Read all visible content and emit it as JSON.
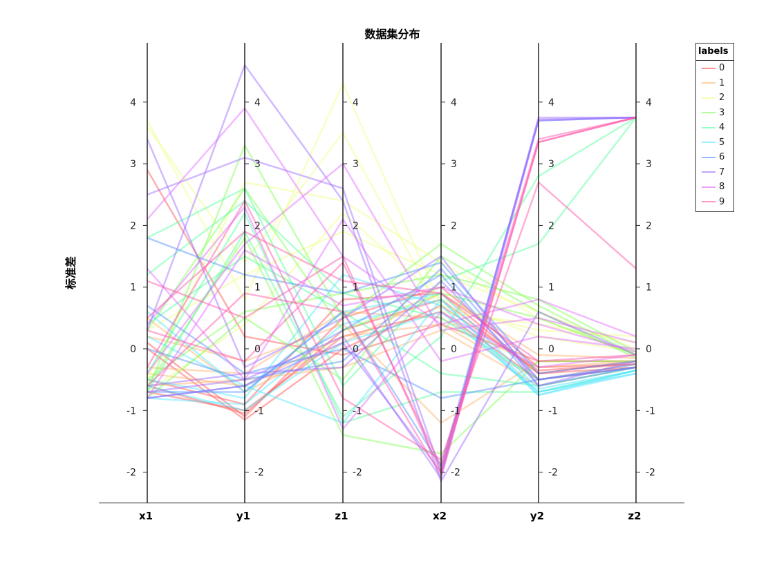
{
  "chart_data": {
    "type": "parallel-coordinates",
    "title": "数据集分布",
    "ylabel": "标准差",
    "axes": [
      "x1",
      "y1",
      "z1",
      "x2",
      "y2",
      "z2"
    ],
    "ylim": [
      -2.5,
      4.9
    ],
    "yticks": [
      -2,
      -1,
      0,
      1,
      2,
      3,
      4
    ],
    "grid": false,
    "legend": {
      "title": "labels",
      "placement": "top-right"
    },
    "series": [
      {
        "name": "0",
        "color": "#ff4d4d",
        "values": [
          [
            -0.6,
            -1.05,
            0.3,
            0.8,
            -0.4,
            -0.2
          ],
          [
            0.1,
            -1.1,
            0.5,
            1.0,
            -0.3,
            -0.25
          ],
          [
            -0.7,
            -1.0,
            0.2,
            0.6,
            -0.5,
            -0.3
          ],
          [
            2.9,
            0.2,
            -0.1,
            0.4,
            -0.2,
            -0.2
          ],
          [
            -0.5,
            -0.9,
            0.8,
            0.9,
            -0.4,
            -0.3
          ],
          [
            0.0,
            -1.15,
            0.0,
            0.7,
            -0.35,
            -0.25
          ]
        ]
      },
      {
        "name": "1",
        "color": "#ffb06b",
        "values": [
          [
            -0.3,
            -0.4,
            0.6,
            0.5,
            -0.3,
            -0.2
          ],
          [
            0.5,
            -0.7,
            0.1,
            0.9,
            -0.1,
            -0.15
          ],
          [
            -0.6,
            -0.5,
            -0.3,
            0.3,
            -0.6,
            -0.3
          ],
          [
            0.2,
            -0.2,
            0.4,
            -1.2,
            -0.2,
            -0.2
          ],
          [
            -0.4,
            -0.6,
            0.2,
            0.4,
            -0.5,
            -0.25
          ]
        ]
      },
      {
        "name": "2",
        "color": "#eeff80",
        "values": [
          [
            3.7,
            0.8,
            4.3,
            0.7,
            0.3,
            0.2
          ],
          [
            3.6,
            1.4,
            3.5,
            0.6,
            0.4,
            0.1
          ],
          [
            -0.5,
            2.7,
            2.4,
            1.4,
            0.5,
            -0.1
          ],
          [
            0.3,
            1.2,
            1.9,
            1.2,
            0.6,
            0.0
          ],
          [
            -0.7,
            0.4,
            2.2,
            0.8,
            0.2,
            -0.05
          ]
        ]
      },
      {
        "name": "3",
        "color": "#7dff4d",
        "values": [
          [
            -0.7,
            3.3,
            0.5,
            1.7,
            0.7,
            -0.1
          ],
          [
            -0.6,
            1.8,
            -1.4,
            -1.7,
            -0.2,
            -0.2
          ],
          [
            -0.5,
            0.6,
            0.9,
            1.2,
            0.8,
            -0.05
          ],
          [
            0.3,
            2.6,
            0.3,
            0.9,
            0.5,
            -0.1
          ],
          [
            -0.8,
            0.5,
            -0.5,
            1.5,
            0.6,
            -0.15
          ]
        ]
      },
      {
        "name": "4",
        "color": "#4dff99",
        "values": [
          [
            1.8,
            2.6,
            -0.6,
            1.1,
            1.7,
            3.75
          ],
          [
            -0.7,
            1.9,
            -1.1,
            0.2,
            2.8,
            3.75
          ],
          [
            0.4,
            1.5,
            0.6,
            -0.4,
            -0.6,
            -0.3
          ],
          [
            -0.4,
            2.2,
            -1.2,
            -0.7,
            -0.7,
            -0.35
          ],
          [
            1.2,
            2.4,
            0.9,
            0.5,
            -0.5,
            -0.3
          ]
        ]
      },
      {
        "name": "5",
        "color": "#4de5ff",
        "values": [
          [
            -0.8,
            -0.9,
            0.4,
            0.8,
            -0.7,
            -0.35
          ],
          [
            -0.5,
            -0.8,
            1.2,
            0.7,
            -0.75,
            -0.4
          ],
          [
            0.6,
            -0.7,
            0.6,
            0.9,
            -0.65,
            -0.35
          ],
          [
            -0.6,
            -1.0,
            0.1,
            0.6,
            -0.7,
            -0.4
          ],
          [
            0.2,
            -0.6,
            -1.2,
            0.8,
            -0.75,
            -0.35
          ]
        ]
      },
      {
        "name": "6",
        "color": "#4d8fff",
        "values": [
          [
            0.0,
            -0.5,
            -0.2,
            1.3,
            -0.5,
            -0.3
          ],
          [
            -0.7,
            -0.7,
            0.6,
            -1.9,
            3.7,
            3.75
          ],
          [
            1.8,
            1.2,
            0.9,
            1.4,
            -0.4,
            -0.2
          ],
          [
            -0.8,
            -0.6,
            0.3,
            1.2,
            -0.6,
            -0.3
          ],
          [
            0.7,
            -0.4,
            0.0,
            -0.8,
            -0.5,
            -0.25
          ]
        ]
      },
      {
        "name": "7",
        "color": "#9966ff",
        "values": [
          [
            2.5,
            3.1,
            2.6,
            -2.0,
            3.75,
            3.75
          ],
          [
            3.4,
            -0.3,
            0.5,
            1.5,
            -0.6,
            -0.2
          ],
          [
            -0.7,
            -0.5,
            0.2,
            -2.1,
            3.7,
            3.75
          ],
          [
            -0.8,
            -0.6,
            0.1,
            -2.0,
            3.72,
            3.75
          ],
          [
            0.3,
            4.6,
            2.4,
            -2.15,
            0.6,
            -0.1
          ],
          [
            -0.6,
            -0.4,
            -0.3,
            1.1,
            -0.5,
            -0.3
          ]
        ]
      },
      {
        "name": "8",
        "color": "#e066ff",
        "values": [
          [
            2.1,
            3.9,
            1.5,
            0.4,
            0.8,
            0.2
          ],
          [
            -0.4,
            1.7,
            3.0,
            0.3,
            0.5,
            0.1
          ],
          [
            0.4,
            2.3,
            -1.3,
            0.6,
            -0.3,
            -0.1
          ],
          [
            1.3,
            -0.5,
            2.1,
            -0.2,
            0.2,
            0.0
          ],
          [
            -0.8,
            1.6,
            0.7,
            1.0,
            0.4,
            -0.05
          ]
        ]
      },
      {
        "name": "9",
        "color": "#ff4da6",
        "values": [
          [
            1.1,
            0.5,
            1.5,
            -2.0,
            3.35,
            3.75
          ],
          [
            -0.3,
            2.4,
            -0.8,
            -1.8,
            2.7,
            1.3
          ],
          [
            0.3,
            -0.2,
            1.4,
            -1.9,
            3.4,
            3.75
          ],
          [
            -0.6,
            0.9,
            0.6,
            -2.05,
            3.35,
            3.75
          ],
          [
            0.5,
            1.9,
            1.1,
            0.9,
            -0.2,
            -0.1
          ]
        ]
      }
    ]
  }
}
